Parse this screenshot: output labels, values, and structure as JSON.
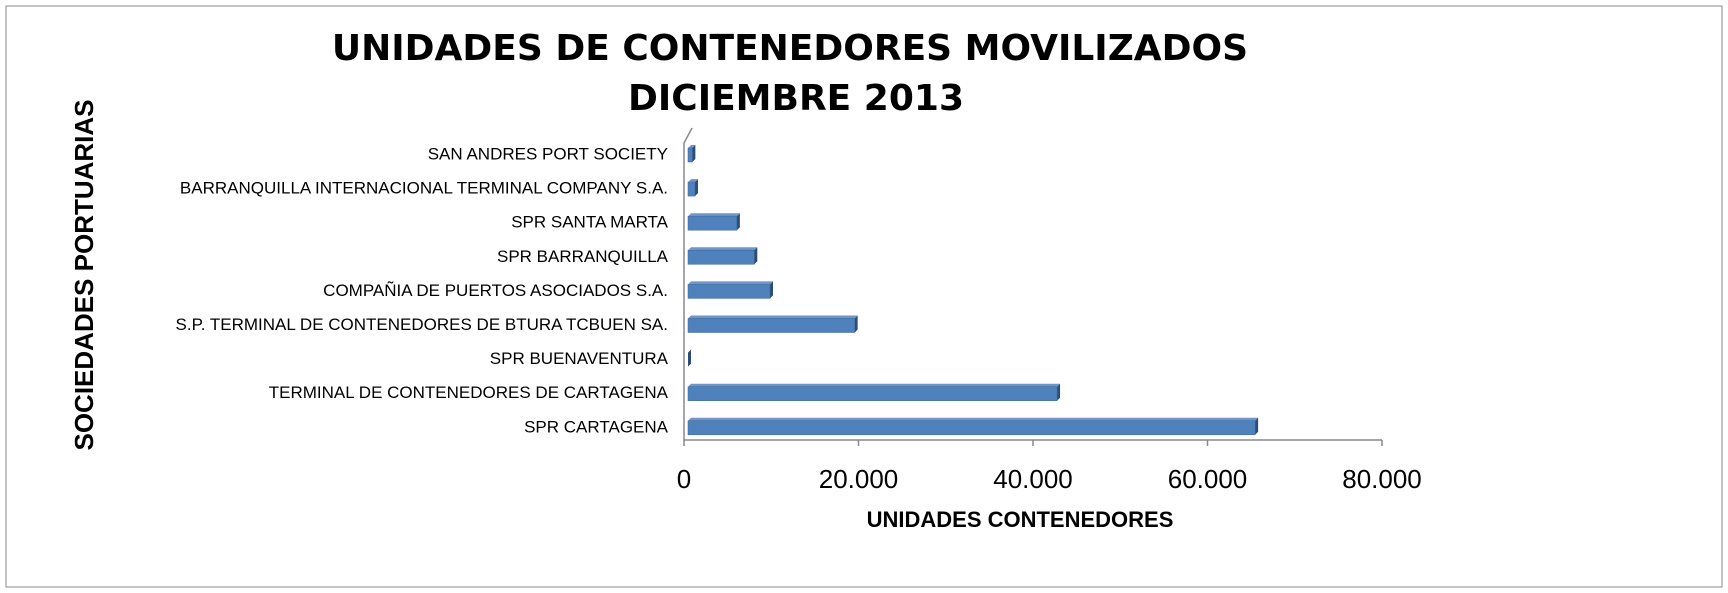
{
  "chart_data": {
    "type": "bar",
    "orientation": "horizontal",
    "title": [
      "UNIDADES DE CONTENEDORES MOVILIZADOS",
      "DICIEMBRE 2013"
    ],
    "x_label": "UNIDADES CONTENEDORES",
    "y_label": "SOCIEDADES PORTUARIAS",
    "categories": [
      "SAN ANDRES PORT SOCIETY",
      "BARRANQUILLA INTERNACIONAL TERMINAL COMPANY S.A.",
      "SPR SANTA MARTA",
      "SPR BARRANQUILLA",
      "COMPAÑIA DE PUERTOS ASOCIADOS S.A.",
      "S.P. TERMINAL DE CONTENEDORES DE BTURA TCBUEN SA.",
      "SPR BUENAVENTURA",
      "TERMINAL DE CONTENEDORES DE CARTAGENA",
      "SPR CARTAGENA"
    ],
    "values": [
      500,
      800,
      5600,
      7600,
      9400,
      19100,
      0,
      42300,
      65000
    ],
    "color": "#4f81bd",
    "xlim": [
      0,
      80000
    ],
    "xticks": [
      0,
      {
        "value": 20000,
        "label": "20.000"
      },
      {
        "value": 40000,
        "label": "40.000"
      },
      {
        "value": 60000,
        "label": "60.000"
      },
      {
        "value": 80000,
        "label": "80.000"
      }
    ]
  }
}
